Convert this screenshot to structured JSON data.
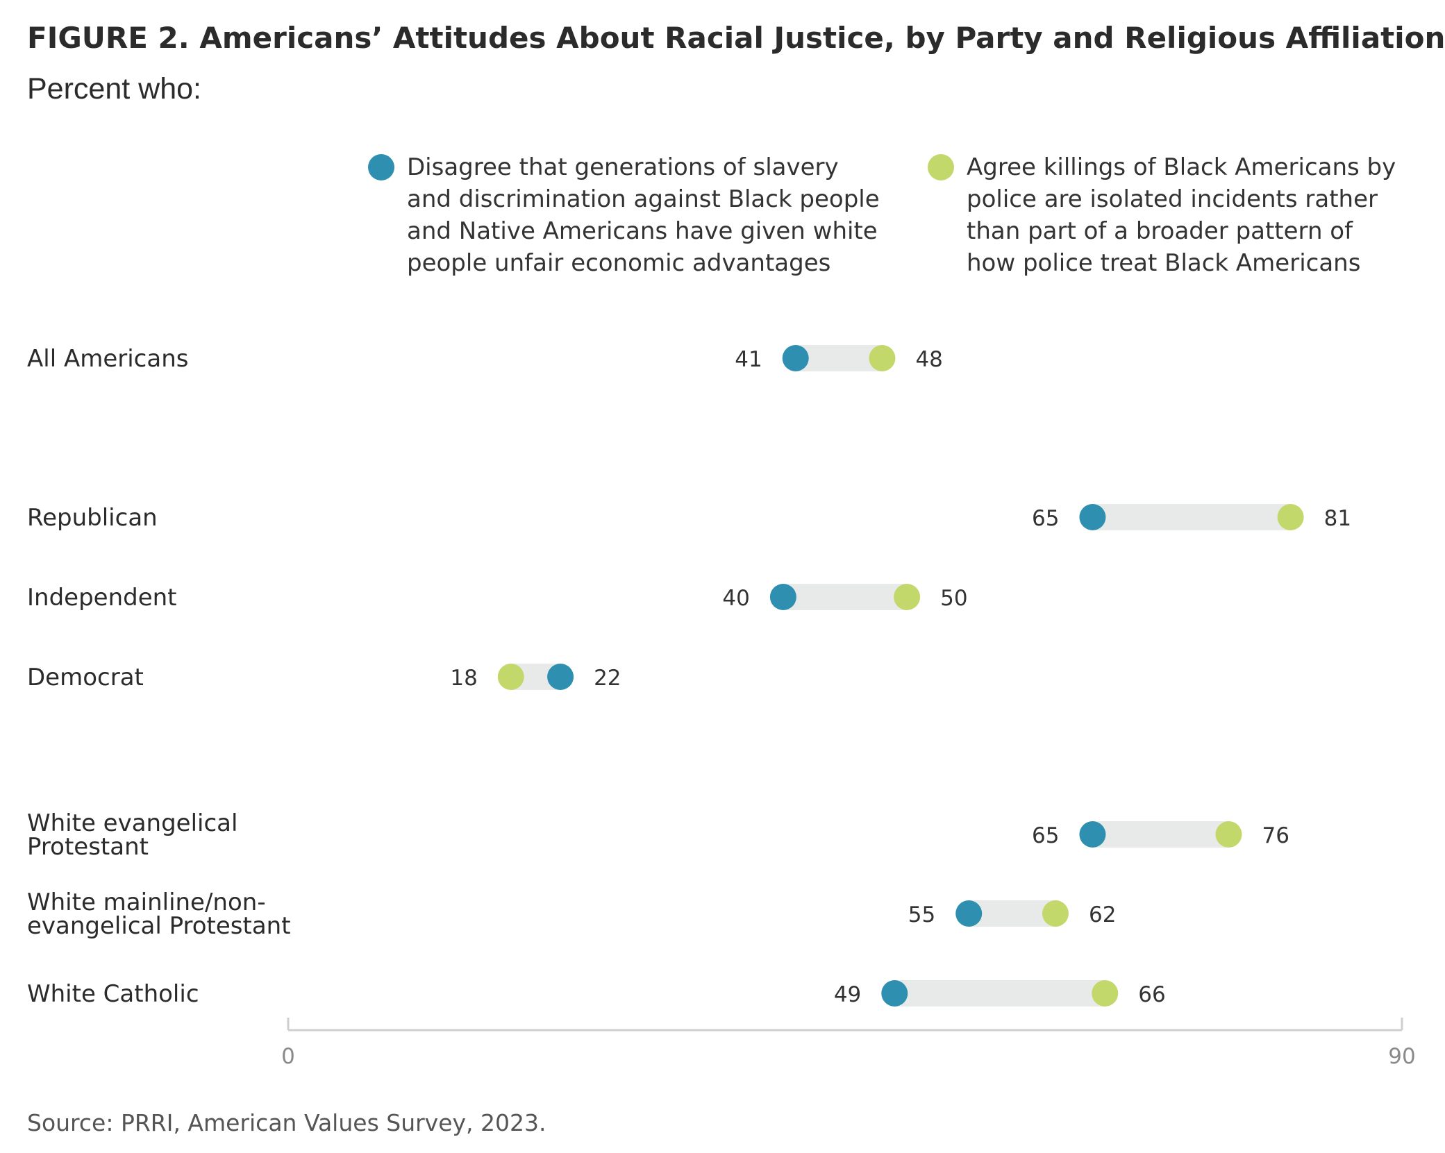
{
  "title": "FIGURE 2. Americans’ Attitudes About Racial Justice, by Party and Religious Affiliation",
  "subtitle": "Percent who:",
  "legend": [
    {
      "lines": [
        "Disagree that generations of slavery",
        "and discrimination against Black people",
        "and Native Americans have given white",
        "people unfair economic advantages"
      ],
      "color": "#2e8fb0"
    },
    {
      "lines": [
        "Agree killings of Black Americans by",
        "police are isolated incidents rather",
        "than part of a broader pattern of",
        "how police treat Black Americans"
      ],
      "color": "#c2d86a"
    }
  ],
  "source": "Source: PRRI, American Values Survey, 2023.",
  "colors": {
    "track": "#e8eaea",
    "axis": "#cfcfcf",
    "tick_text": "#8a8a8a",
    "label_text": "#2b2b2b"
  },
  "chart_data": {
    "type": "dumbbell",
    "xlim": [
      0,
      90
    ],
    "x_ticks": [
      "0",
      "90"
    ],
    "series": [
      {
        "name": "Disagree that generations of slavery and discrimination against Black people and Native Americans have given white people unfair economic advantages",
        "color": "#2e8fb0"
      },
      {
        "name": "Agree killings of Black Americans by police are isolated incidents rather than part of a broader pattern of how police treat Black Americans",
        "color": "#c2d86a"
      }
    ],
    "groups": [
      {
        "label_lines": [
          "All Americans"
        ],
        "values": [
          41,
          48
        ]
      },
      {
        "label_lines": [
          "Republican"
        ],
        "values": [
          65,
          81
        ]
      },
      {
        "label_lines": [
          "Independent"
        ],
        "values": [
          40,
          50
        ]
      },
      {
        "label_lines": [
          "Democrat"
        ],
        "values": [
          22,
          18
        ]
      },
      {
        "label_lines": [
          "White evangelical",
          "Protestant"
        ],
        "values": [
          65,
          76
        ]
      },
      {
        "label_lines": [
          "White mainline/non-",
          "evangelical Protestant"
        ],
        "values": [
          55,
          62
        ]
      },
      {
        "label_lines": [
          "White Catholic"
        ],
        "values": [
          49,
          66
        ]
      }
    ]
  }
}
